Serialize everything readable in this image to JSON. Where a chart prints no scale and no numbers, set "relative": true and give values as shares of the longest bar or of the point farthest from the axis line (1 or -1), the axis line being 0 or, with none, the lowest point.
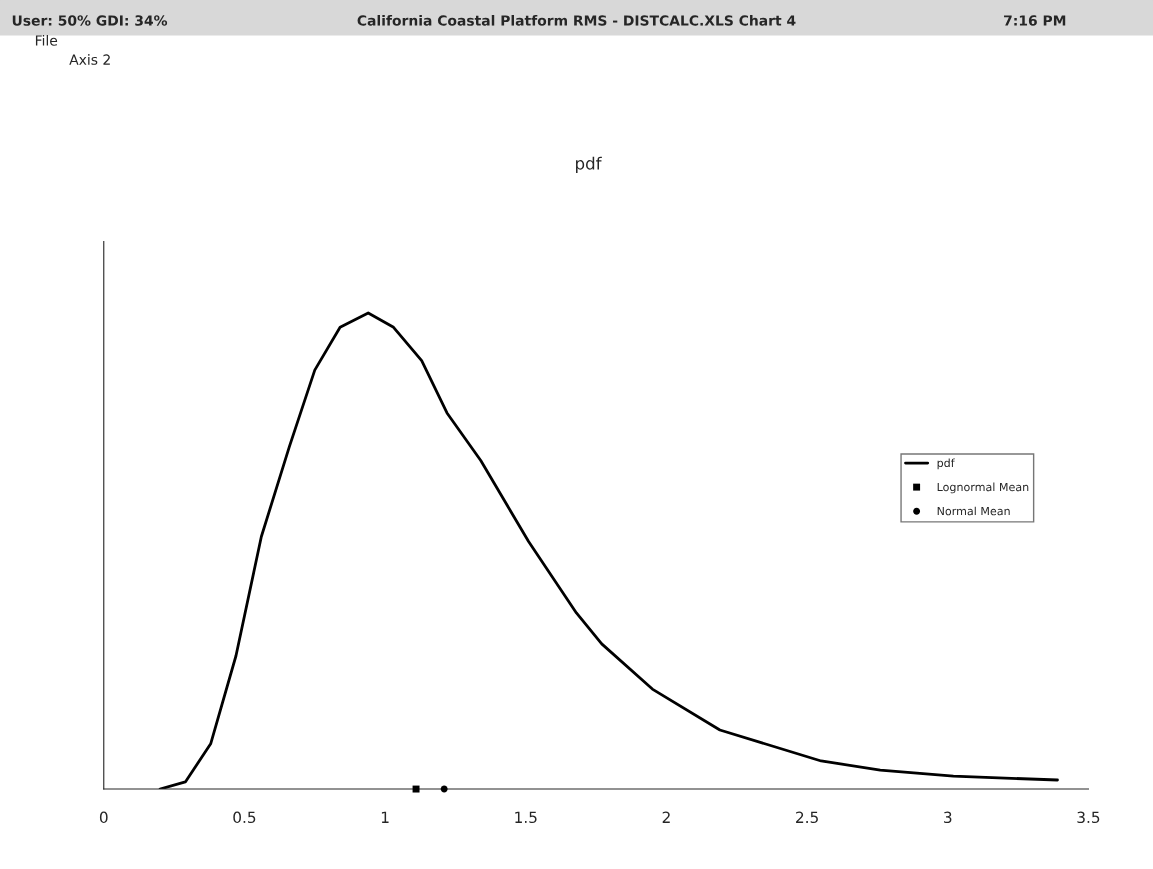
{
  "chart_data": {
    "type": "line",
    "title": "pdf",
    "relative": true,
    "xlim": [
      0,
      3.5
    ],
    "xticks": [
      0,
      0.5,
      1,
      1.5,
      2,
      2.5,
      3,
      3.5
    ],
    "series": [
      {
        "name": "pdf",
        "color": "#000000",
        "marker": "none",
        "x": [
          0.2,
          0.29,
          0.38,
          0.47,
          0.56,
          0.66,
          0.75,
          0.84,
          0.94,
          1.03,
          1.13,
          1.22,
          1.34,
          1.51,
          1.68,
          1.77,
          1.95,
          2.19,
          2.55,
          2.76,
          3.02,
          3.39
        ],
        "values": [
          0,
          0.015,
          0.095,
          0.28,
          0.53,
          0.72,
          0.88,
          0.97,
          1.0,
          0.97,
          0.9,
          0.79,
          0.69,
          0.52,
          0.37,
          0.305,
          0.21,
          0.124,
          0.059,
          0.04,
          0.027,
          0.019
        ]
      },
      {
        "name": "Lognormal Mean",
        "type": "scatter",
        "color": "#000000",
        "marker": "square",
        "x": [
          1.11
        ],
        "values": [
          0
        ]
      },
      {
        "name": "Normal Mean",
        "type": "scatter",
        "color": "#000000",
        "marker": "circle",
        "x": [
          1.21
        ],
        "values": [
          0
        ]
      }
    ],
    "legend": "right",
    "grid": false,
    "annotations": [
      "User: 50% GDI: 34%",
      "California Coastal Platform RMS - DISTCALC.XLS Chart 4",
      "7:16 PM",
      "File",
      "Axis 2"
    ]
  }
}
